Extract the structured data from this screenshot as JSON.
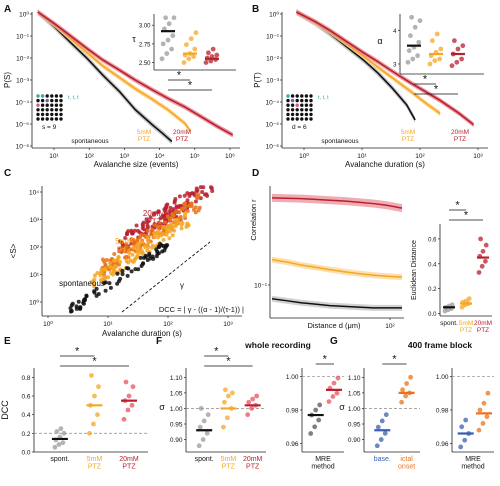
{
  "colors": {
    "spont": "#111111",
    "spont_band": "#bdbdbd",
    "ptz5": "#f5a623",
    "ptz5_band": "#fbd28a",
    "ptz20": "#b8202e",
    "ptz20_band": "#e88a93",
    "mid": "#e8731c",
    "grid_dash": "#9a9a9a",
    "dot_teal": "#3aa7a0",
    "dot_purple": "#7a5aa8",
    "dot_pink": "#d05a98",
    "blue": "#3b5fb0"
  },
  "panel_labels": [
    "A",
    "B",
    "C",
    "D",
    "E",
    "F",
    "G"
  ],
  "chart_data": [
    {
      "id": "A",
      "type": "line",
      "scale": "log-log",
      "xlabel": "Avalanche size (events)",
      "ylabel": "P(S)",
      "xticks": [
        "10¹",
        "10²",
        "10³",
        "10⁴",
        "10⁵",
        "10⁶"
      ],
      "yticks": [
        "10⁰",
        "10⁻¹",
        "10⁻²",
        "10⁻³",
        "10⁻⁴",
        "10⁻⁵",
        "10⁻⁶"
      ],
      "series": [
        {
          "name": "spontaneous",
          "x": [
            3,
            10,
            30,
            100,
            300,
            1000,
            3000,
            10000,
            20000,
            40000
          ],
          "y": [
            1,
            0.2,
            0.04,
            0.007,
            0.0012,
            0.0002,
            3e-05,
            6e-06,
            2.5e-06,
            1e-06
          ]
        },
        {
          "name": "5mM PTZ",
          "x": [
            3,
            10,
            30,
            100,
            300,
            1000,
            3000,
            10000,
            30000,
            100000,
            150000
          ],
          "y": [
            1,
            0.25,
            0.06,
            0.013,
            0.0032,
            0.0009,
            0.00028,
            9e-05,
            3e-05,
            7e-06,
            3e-06
          ]
        },
        {
          "name": "20mM PTZ",
          "x": [
            3,
            10,
            30,
            100,
            300,
            1000,
            3000,
            10000,
            30000,
            100000,
            300000,
            1000000,
            3000000
          ],
          "y": [
            1,
            0.28,
            0.08,
            0.02,
            0.006,
            0.002,
            0.0007,
            0.00025,
            0.0001,
            4e-05,
            1.5e-05,
            5e-06,
            2e-06
          ]
        }
      ],
      "labels": {
        "spont": "spontaneous",
        "ptz5": "5mM\nPTZ",
        "ptz20": "20mM\nPTZ"
      },
      "grid_caption": "s = 9",
      "dot_caption": "t, t, t",
      "inset": {
        "ylabel": "τ",
        "yticks": [
          "3.00",
          "2.75",
          "2.50"
        ],
        "ylim": [
          2.4,
          3.15
        ],
        "groups": [
          {
            "name": "spontaneous",
            "mean": 2.92,
            "points": [
              2.55,
              2.62,
              2.68,
              2.75,
              2.8,
              2.86,
              2.95,
              3.02,
              3.1,
              3.1
            ]
          },
          {
            "name": "5mM PTZ",
            "mean": 2.62,
            "points": [
              2.5,
              2.55,
              2.58,
              2.6,
              2.62,
              2.68,
              2.74,
              2.82,
              2.9
            ]
          },
          {
            "name": "20mM PTZ",
            "mean": 2.55,
            "points": [
              2.5,
              2.52,
              2.54,
              2.56,
              2.58,
              2.6,
              2.63,
              2.68
            ]
          }
        ],
        "sig": [
          "*",
          "*"
        ]
      }
    },
    {
      "id": "B",
      "type": "line",
      "scale": "log-log",
      "xlabel": "Avalanche duration (s)",
      "ylabel": "P(T)",
      "xticks": [
        "10⁰",
        "10¹",
        "10²",
        "10³"
      ],
      "yticks": [
        "10⁰",
        "10⁻¹",
        "10⁻²",
        "10⁻³",
        "10⁻⁴",
        "10⁻⁵",
        "10⁻⁶"
      ],
      "series": [
        {
          "name": "spontaneous",
          "x": [
            0.2,
            0.5,
            1,
            2,
            5,
            10,
            20,
            40,
            60
          ],
          "y": [
            1,
            0.3,
            0.1,
            0.03,
            0.006,
            0.0015,
            0.0003,
            5e-05,
            1e-05
          ]
        },
        {
          "name": "5mM PTZ",
          "x": [
            0.2,
            0.5,
            1,
            2,
            5,
            10,
            20,
            50,
            100,
            200
          ],
          "y": [
            1,
            0.32,
            0.12,
            0.04,
            0.009,
            0.0028,
            0.0009,
            0.0002,
            6e-05,
            2e-05
          ]
        },
        {
          "name": "20mM PTZ",
          "x": [
            0.2,
            0.5,
            1,
            2,
            5,
            10,
            20,
            50,
            100,
            200,
            500,
            1000
          ],
          "y": [
            1,
            0.35,
            0.14,
            0.05,
            0.013,
            0.005,
            0.0018,
            0.0005,
            0.0002,
            8e-05,
            2e-05,
            6e-06
          ]
        }
      ],
      "labels": {
        "spont": "spontaneous",
        "ptz5": "5mM\nPTZ",
        "ptz20": "20mM\nPTZ"
      },
      "grid_caption": "d = 6",
      "dot_caption": "t, t, t",
      "inset": {
        "ylabel": "α",
        "yticks": [
          "4",
          "3"
        ],
        "ylim": [
          2.7,
          4.5
        ],
        "groups": [
          {
            "name": "spontaneous",
            "mean": 3.55,
            "points": [
              3.05,
              3.15,
              3.25,
              3.4,
              3.5,
              3.65,
              3.85,
              4.1,
              4.3,
              4.4
            ]
          },
          {
            "name": "5mM PTZ",
            "mean": 3.3,
            "points": [
              3.0,
              3.1,
              3.15,
              3.25,
              3.35,
              3.45,
              3.7,
              3.9
            ]
          },
          {
            "name": "20mM PTZ",
            "mean": 3.3,
            "points": [
              2.95,
              3.05,
              3.15,
              3.3,
              3.45,
              3.55,
              3.7
            ]
          }
        ],
        "sig": [
          "*",
          "*"
        ]
      }
    },
    {
      "id": "C",
      "type": "scatter",
      "scale": "log-log",
      "xlabel": "Avalanche duration (s)",
      "ylabel": "<S>",
      "xticks": [
        "10⁰",
        "10¹",
        "10²",
        "10³"
      ],
      "yticks": [
        "10⁰",
        "10¹",
        "10²",
        "10³",
        "10⁴"
      ],
      "series_labels": {
        "ptz20": "20mM\nPTZ",
        "ptz5": "5mM\nPTZ",
        "spont": "spontaneous"
      },
      "gamma_label": "γ",
      "formula": "DCC = | γ - ((α - 1)/(τ-1)) |"
    },
    {
      "id": "D",
      "type": "line",
      "scale": "semilog",
      "xlabel": "Distance d (μm)",
      "ylabel": "Correlation r",
      "xticks": [
        "10²"
      ],
      "yticks": [
        "10⁻¹"
      ],
      "series": [
        {
          "name": "20mM PTZ",
          "y": [
            0.62,
            0.615,
            0.61,
            0.6,
            0.59,
            0.58,
            0.565,
            0.55,
            0.53,
            0.5
          ]
        },
        {
          "name": "5mM PTZ",
          "y": [
            0.17,
            0.162,
            0.152,
            0.145,
            0.138,
            0.132,
            0.127,
            0.123,
            0.12,
            0.118
          ]
        },
        {
          "name": "spontaneous",
          "y": [
            0.075,
            0.072,
            0.069,
            0.067,
            0.065,
            0.064,
            0.063,
            0.062,
            0.062,
            0.062
          ]
        }
      ],
      "inset": {
        "ylabel": "Euclidean Distance",
        "yticks": [
          "0.6",
          "0.4",
          "0.2",
          "0.0"
        ],
        "ylim": [
          -0.02,
          0.72
        ],
        "categories": [
          "spont.",
          "5mM\nPTZ",
          "20mM\nPTZ"
        ],
        "groups": [
          {
            "name": "spont.",
            "mean": 0.05,
            "points": [
              0.02,
              0.03,
              0.04,
              0.05,
              0.06,
              0.07
            ]
          },
          {
            "name": "5mM PTZ",
            "mean": 0.08,
            "points": [
              0.05,
              0.07,
              0.08,
              0.09,
              0.1,
              0.12
            ]
          },
          {
            "name": "20mM PTZ",
            "mean": 0.45,
            "points": [
              0.33,
              0.38,
              0.42,
              0.46,
              0.5,
              0.55,
              0.6
            ]
          }
        ],
        "sig": [
          "*",
          "*"
        ]
      }
    },
    {
      "id": "E",
      "type": "scatter",
      "ylabel": "DCC",
      "yticks": [
        "0.8",
        "0.6",
        "0.4",
        "0.2",
        "0.0"
      ],
      "ylim": [
        0,
        0.9
      ],
      "categories": [
        "spont.",
        "5mM\nPTZ",
        "20mM\nPTZ"
      ],
      "groups": [
        {
          "name": "spont.",
          "mean": 0.14,
          "points": [
            0.05,
            0.08,
            0.1,
            0.13,
            0.16,
            0.2,
            0.22,
            0.25
          ]
        },
        {
          "name": "5mM PTZ",
          "mean": 0.5,
          "points": [
            0.2,
            0.3,
            0.4,
            0.5,
            0.6,
            0.7,
            0.82
          ]
        },
        {
          "name": "20mM PTZ",
          "mean": 0.55,
          "points": [
            0.35,
            0.45,
            0.5,
            0.55,
            0.6,
            0.7,
            0.75
          ]
        }
      ],
      "ref_line": 0.2,
      "sig": [
        "*",
        "*"
      ]
    },
    {
      "id": "F",
      "type": "scatter",
      "title": "whole recording",
      "ylabel": "σ",
      "left": {
        "yticks": [
          "1.10",
          "1.05",
          "1.00",
          "0.95",
          "0.90"
        ],
        "ylim": [
          0.86,
          1.13
        ],
        "categories": [
          "spont.",
          "5mM\nPTZ",
          "20mM\nPTZ"
        ],
        "groups": [
          {
            "name": "spont.",
            "mean": 0.93,
            "points": [
              0.88,
              0.9,
              0.92,
              0.94,
              0.96,
              0.98,
              1.0
            ]
          },
          {
            "name": "5mM PTZ",
            "mean": 1.0,
            "points": [
              0.94,
              0.97,
              1.0,
              1.02,
              1.04,
              1.05,
              1.06
            ]
          },
          {
            "name": "20mM PTZ",
            "mean": 1.01,
            "points": [
              0.98,
              1.0,
              1.01,
              1.02,
              1.03,
              1.04
            ]
          }
        ],
        "ref_line": 1.0,
        "sig": [
          "*",
          "*"
        ]
      },
      "right": {
        "yticks": [
          "1.00",
          "0.98",
          "0.96"
        ],
        "ylim": [
          0.955,
          1.005
        ],
        "categories": [
          "MRE\nmethod"
        ],
        "groups": [
          {
            "name": "MRE left",
            "mean": 0.977,
            "points": [
              0.966,
              0.97,
              0.974,
              0.977,
              0.98,
              0.983
            ]
          },
          {
            "name": "MRE right",
            "mean": 0.992,
            "points": [
              0.985,
              0.988,
              0.99,
              0.993,
              0.996,
              0.999
            ]
          }
        ],
        "ref_line": 1.0,
        "sig": [
          "*"
        ]
      }
    },
    {
      "id": "G",
      "type": "scatter",
      "title": "400 frame block",
      "ylabel": "σ",
      "left": {
        "yticks": [
          "1.10",
          "1.05",
          "1.00",
          "0.95",
          "0.90"
        ],
        "ylim": [
          0.86,
          1.13
        ],
        "categories": [
          "base.",
          "ictal\nonset"
        ],
        "groups": [
          {
            "name": "base.",
            "mean": 0.93,
            "points": [
              0.88,
              0.9,
              0.92,
              0.94,
              0.96,
              0.98
            ]
          },
          {
            "name": "ictal onset",
            "mean": 1.05,
            "points": [
              1.02,
              1.04,
              1.05,
              1.06,
              1.08,
              1.1
            ]
          }
        ],
        "ref_line": 1.0,
        "sig": [
          "*"
        ]
      },
      "right": {
        "yticks": [
          "1.00",
          "0.98",
          "0.96"
        ],
        "ylim": [
          0.955,
          1.005
        ],
        "categories": [
          "MRE\nmethod"
        ],
        "groups": [
          {
            "name": "MRE left",
            "mean": 0.966,
            "points": [
              0.958,
              0.962,
              0.966,
              0.97,
              0.974
            ]
          },
          {
            "name": "MRE right",
            "mean": 0.978,
            "points": [
              0.968,
              0.972,
              0.976,
              0.98,
              0.984,
              0.99
            ]
          }
        ],
        "ref_line": 1.0,
        "sig": []
      }
    }
  ]
}
